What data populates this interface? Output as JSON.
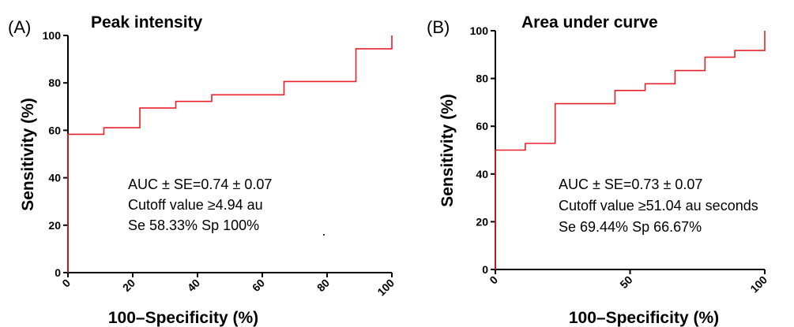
{
  "chart_data": [
    {
      "type": "line",
      "panel_label": "(A)",
      "title": "Peak intensity",
      "xlabel": "100–Specificity (%)",
      "ylabel": "Sensitivity (%)",
      "xlim": [
        0,
        100
      ],
      "ylim": [
        0,
        100
      ],
      "xticks": [
        0,
        20,
        40,
        60,
        80,
        100
      ],
      "yticks": [
        0,
        20,
        40,
        60,
        80,
        100
      ],
      "grid": false,
      "series_color": "#e8202a",
      "series": [
        {
          "x": [
            0,
            0,
            11.1,
            11.1,
            22.2,
            22.2,
            33.3,
            33.3,
            44.4,
            44.4,
            66.7,
            66.7,
            88.9,
            88.9,
            100,
            100
          ],
          "y": [
            0,
            58.33,
            58.33,
            61.1,
            61.1,
            69.4,
            69.4,
            72.2,
            72.2,
            75.0,
            75.0,
            80.6,
            80.6,
            94.4,
            94.4,
            100
          ]
        }
      ],
      "annotations": [
        "AUC ±  SE=0.74 ± 0.07",
        "Cutoff value ≥4.94 au",
        "Se 58.33% Sp 100%"
      ]
    },
    {
      "type": "line",
      "panel_label": "(B)",
      "title": "Area under curve",
      "xlabel": "100–Specificity (%)",
      "ylabel": "Sensitivity (%)",
      "xlim": [
        0,
        100
      ],
      "ylim": [
        0,
        100
      ],
      "xticks": [
        0,
        50,
        100
      ],
      "yticks": [
        0,
        20,
        40,
        60,
        80,
        100
      ],
      "grid": false,
      "series_color": "#e8202a",
      "series": [
        {
          "x": [
            0,
            0,
            11.1,
            11.1,
            22.2,
            22.2,
            44.4,
            44.4,
            55.6,
            55.6,
            66.7,
            66.7,
            77.8,
            77.8,
            88.9,
            88.9,
            100,
            100
          ],
          "y": [
            0,
            50.0,
            50.0,
            52.8,
            52.8,
            69.44,
            69.44,
            75.0,
            75.0,
            77.8,
            77.8,
            83.3,
            83.3,
            88.9,
            88.9,
            91.7,
            91.7,
            100
          ]
        }
      ],
      "annotations": [
        "AUC ±  SE=0.73 ± 0.07",
        "Cutoff value ≥51.04 au seconds",
        "Se 69.44% Sp 66.67%"
      ]
    }
  ]
}
